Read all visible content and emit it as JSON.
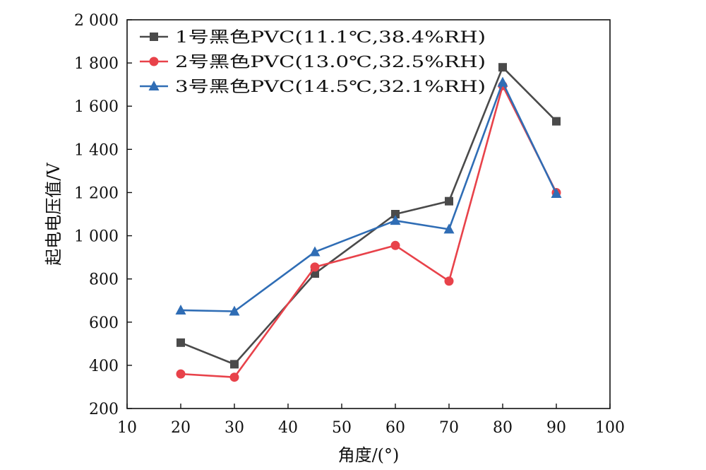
{
  "chart_data": {
    "type": "line",
    "xlabel": "角度/(°)",
    "ylabel": "起电电压值/V",
    "xlim": [
      10,
      100
    ],
    "ylim": [
      200,
      2000
    ],
    "xticks": [
      10,
      20,
      30,
      40,
      50,
      60,
      70,
      80,
      90,
      100
    ],
    "yticks": [
      200,
      400,
      600,
      800,
      1000,
      1200,
      1400,
      1600,
      1800,
      2000
    ],
    "xtick_labels": [
      "10",
      "20",
      "30",
      "40",
      "50",
      "60",
      "70",
      "80",
      "90",
      "100"
    ],
    "ytick_labels": [
      "200",
      "400",
      "600",
      "800",
      "1 000",
      "1 200",
      "1 400",
      "1 600",
      "1 800",
      "2 000"
    ],
    "grid": false,
    "legend_position": "top-left",
    "x": [
      20,
      30,
      45,
      60,
      70,
      80,
      90
    ],
    "series": [
      {
        "name": "1号黑色PVC(11.1℃,38.4%RH)",
        "color": "#4a4a4a",
        "marker": "square",
        "values": [
          505,
          405,
          825,
          1100,
          1160,
          1780,
          1530
        ]
      },
      {
        "name": "2号黑色PVC(13.0℃,32.5%RH)",
        "color": "#e8424a",
        "marker": "circle",
        "values": [
          360,
          345,
          855,
          955,
          790,
          1695,
          1200
        ]
      },
      {
        "name": "3号黑色PVC(14.5℃,32.1%RH)",
        "color": "#2f6db5",
        "marker": "triangle",
        "values": [
          655,
          650,
          925,
          1070,
          1030,
          1710,
          1195
        ]
      }
    ]
  }
}
